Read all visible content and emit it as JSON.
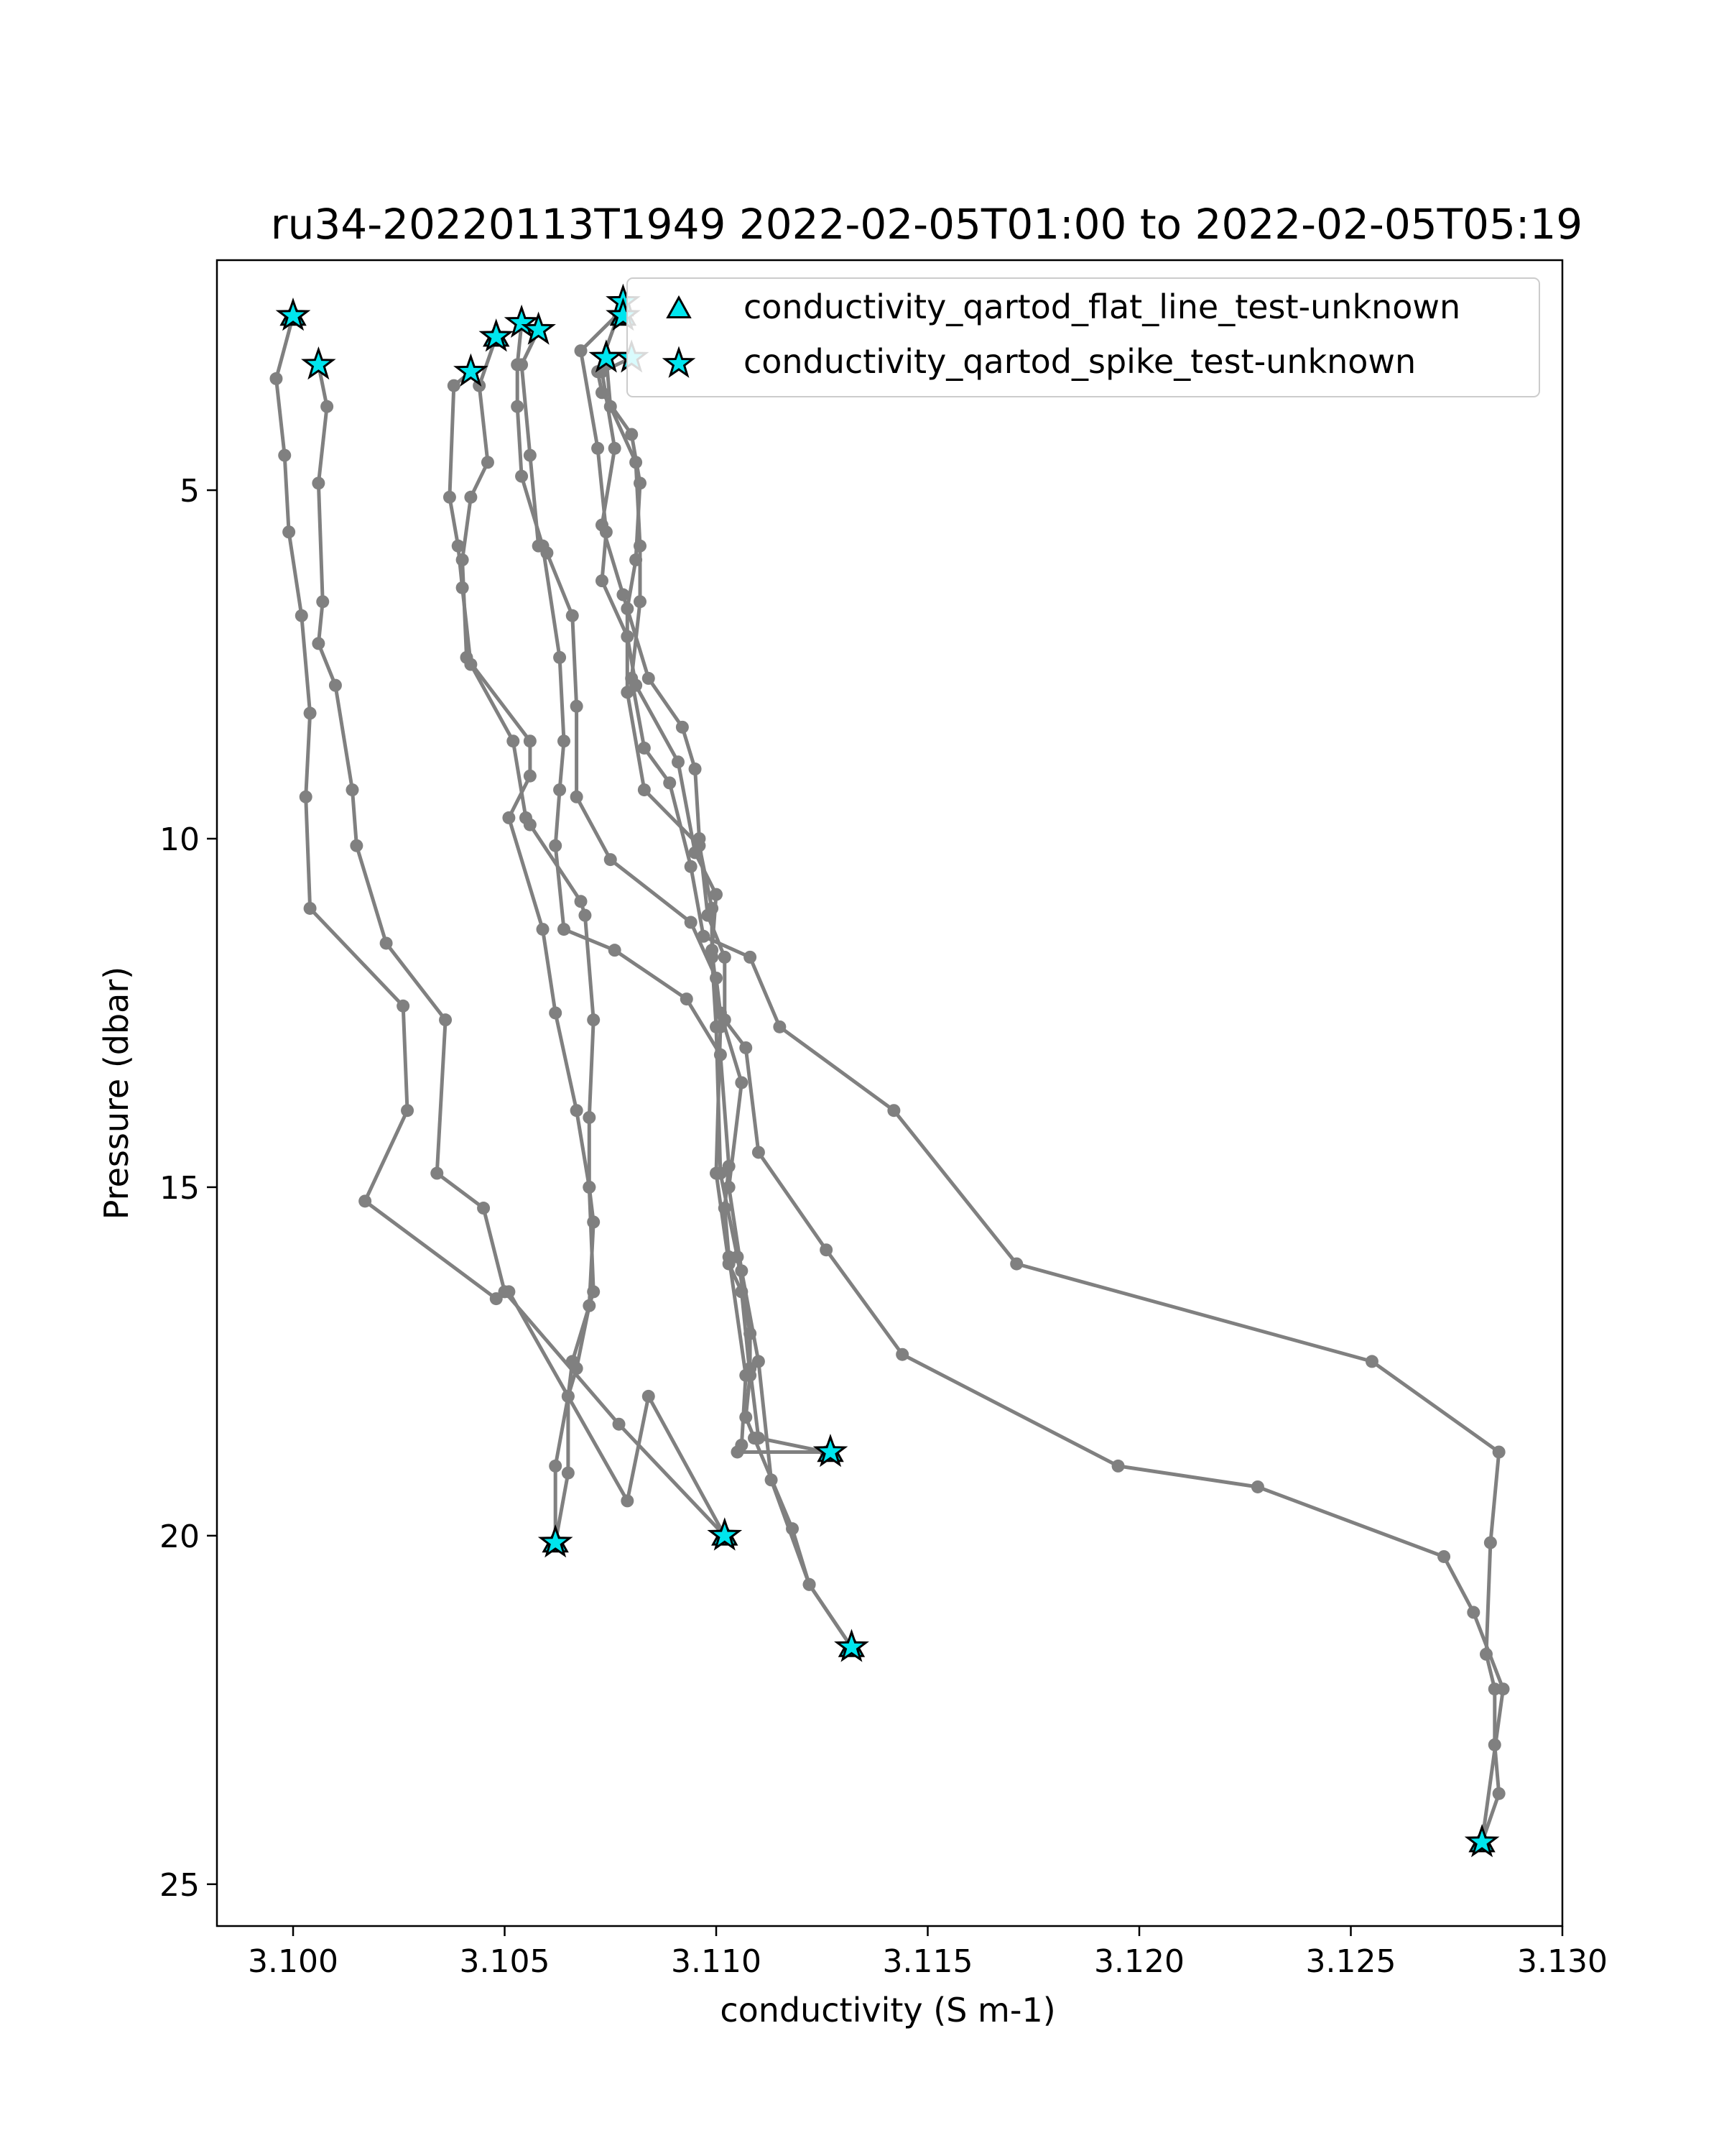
{
  "chart_data": {
    "type": "scatter",
    "title": "ru34-20220113T1949 2022-02-05T01:00 to 2022-02-05T05:19",
    "xlabel": "conductivity (S m-1)",
    "ylabel": "Pressure (dbar)",
    "xlim": [
      3.0982,
      3.13
    ],
    "ylim": [
      25.6,
      1.7
    ],
    "y_inverted": true,
    "x_ticks": [
      3.1,
      3.105,
      3.11,
      3.115,
      3.12,
      3.125,
      3.13
    ],
    "x_tick_labels": [
      "3.100",
      "3.105",
      "3.110",
      "3.115",
      "3.120",
      "3.125",
      "3.130"
    ],
    "y_ticks": [
      5,
      10,
      15,
      20,
      25
    ],
    "y_tick_labels": [
      "5",
      "10",
      "15",
      "20",
      "25"
    ],
    "grid": false,
    "legend_position": "top-right",
    "colors": {
      "profile": "#808080",
      "flag_fill": "#00e5ee",
      "flag_edge": "#000000"
    },
    "legend": [
      {
        "label": "conductivity_qartod_flat_line_test-unknown",
        "marker": "triangle"
      },
      {
        "label": "conductivity_qartod_spike_test-unknown",
        "marker": "star"
      }
    ],
    "profiles": [
      {
        "x": [
          3.1,
          3.0996,
          3.0998,
          3.0999,
          3.1002,
          3.1004,
          3.1003,
          3.1004,
          3.1026,
          3.1027,
          3.1017,
          3.1048,
          3.1051,
          3.1079,
          3.1084,
          3.1102
        ],
        "y": [
          2.5,
          3.4,
          4.5,
          5.6,
          6.8,
          8.2,
          9.4,
          11.0,
          12.4,
          13.9,
          15.2,
          16.6,
          16.5,
          19.5,
          18.0,
          20.0
        ]
      },
      {
        "x": [
          3.1006,
          3.1008,
          3.1006,
          3.1007,
          3.1006,
          3.101,
          3.1014,
          3.1015,
          3.1022,
          3.1036,
          3.1034,
          3.1045,
          3.105,
          3.1077,
          3.1102
        ],
        "y": [
          3.2,
          3.8,
          4.9,
          6.6,
          7.2,
          7.8,
          9.3,
          10.1,
          11.5,
          12.6,
          14.8,
          15.3,
          16.5,
          18.4,
          20.0
        ]
      },
      {
        "x": [
          3.1042,
          3.1038,
          3.1037,
          3.1039,
          3.104,
          3.1042,
          3.1052,
          3.1055,
          3.1056,
          3.1068,
          3.1069,
          3.1071,
          3.107,
          3.107,
          3.1071,
          3.107,
          3.1067,
          3.1065,
          3.1062,
          3.1062
        ],
        "y": [
          3.3,
          3.5,
          5.1,
          5.8,
          6.4,
          7.5,
          8.6,
          9.7,
          9.8,
          10.9,
          11.1,
          12.6,
          14.0,
          15.0,
          15.5,
          16.7,
          17.6,
          18.0,
          19.0,
          20.1
        ]
      },
      {
        "x": [
          3.1048,
          3.1044,
          3.1046,
          3.1042,
          3.104,
          3.1041,
          3.1056,
          3.1056,
          3.1051,
          3.1059,
          3.1062,
          3.1067,
          3.107,
          3.1071,
          3.1066,
          3.1065,
          3.1065,
          3.1062
        ],
        "y": [
          2.8,
          3.5,
          4.6,
          5.1,
          6.0,
          7.4,
          8.6,
          9.1,
          9.7,
          11.3,
          12.5,
          13.9,
          15.0,
          16.5,
          17.5,
          18.0,
          19.1,
          20.1
        ]
      },
      {
        "x": [
          3.1054,
          3.1053,
          3.1053,
          3.1054,
          3.1059,
          3.1063,
          3.1064,
          3.1063,
          3.1062,
          3.1064,
          3.1076,
          3.1093,
          3.1101,
          3.1103,
          3.1102,
          3.1103,
          3.1107,
          3.1106,
          3.1105,
          3.1127
        ],
        "y": [
          2.6,
          3.2,
          3.8,
          4.8,
          5.8,
          7.4,
          8.6,
          9.3,
          10.1,
          11.3,
          11.6,
          12.3,
          13.1,
          14.7,
          15.3,
          16.0,
          17.7,
          18.7,
          18.8,
          18.8
        ]
      },
      {
        "x": [
          3.1058,
          3.1054,
          3.1056,
          3.1058,
          3.106,
          3.1066,
          3.1067,
          3.1067,
          3.1075,
          3.1094,
          3.11,
          3.1101,
          3.1106,
          3.1103,
          3.1106,
          3.111,
          3.1113,
          3.1122,
          3.1132
        ],
        "y": [
          2.7,
          3.2,
          4.5,
          5.8,
          5.9,
          6.8,
          8.1,
          9.4,
          10.3,
          11.2,
          12.0,
          12.5,
          13.5,
          15.0,
          16.2,
          17.5,
          19.2,
          20.7,
          21.6
        ]
      },
      {
        "x": [
          3.1078,
          3.1068,
          3.1072,
          3.1074,
          3.1073,
          3.1079,
          3.1081,
          3.1091,
          3.1095,
          3.11,
          3.1099,
          3.1101,
          3.11,
          3.1103,
          3.1106,
          3.1108,
          3.1107,
          3.1109,
          3.1118,
          3.1122,
          3.1132
        ],
        "y": [
          2.4,
          3.0,
          4.4,
          5.6,
          6.3,
          7.1,
          7.8,
          8.9,
          10.2,
          10.8,
          11.6,
          12.7,
          14.8,
          16.1,
          16.5,
          17.7,
          18.3,
          18.6,
          19.9,
          20.7,
          21.6
        ]
      },
      {
        "x": [
          3.1078,
          3.1072,
          3.1073,
          3.108,
          3.1082,
          3.1081,
          3.1079,
          3.1079,
          3.1083,
          3.1096,
          3.1099,
          3.1099,
          3.11,
          3.1101,
          3.1105,
          3.1108,
          3.1108,
          3.111,
          3.1126
        ],
        "y": [
          2.3,
          3.3,
          3.6,
          4.2,
          4.9,
          6.0,
          6.7,
          7.9,
          9.3,
          10.1,
          11.0,
          11.7,
          12.7,
          14.8,
          16.0,
          17.1,
          17.6,
          18.6,
          18.8
        ]
      },
      {
        "x": [
          3.1074,
          3.1075,
          3.1081,
          3.1082,
          3.1082,
          3.108,
          3.1083,
          3.1089,
          3.1094,
          3.1097,
          3.1108,
          3.1115,
          3.1142,
          3.1171,
          3.1255,
          3.1285,
          3.1283,
          3.1282,
          3.1284,
          3.1284,
          3.1285,
          3.1281
        ],
        "y": [
          3.1,
          3.8,
          4.6,
          5.8,
          6.6,
          7.7,
          8.7,
          9.2,
          10.4,
          11.4,
          11.7,
          12.7,
          13.9,
          16.1,
          17.5,
          18.8,
          20.1,
          21.7,
          22.2,
          23.0,
          23.7,
          24.4
        ]
      },
      {
        "x": [
          3.108,
          3.1073,
          3.1076,
          3.1073,
          3.1078,
          3.1084,
          3.1092,
          3.1095,
          3.1096,
          3.1098,
          3.1102,
          3.1102,
          3.1107,
          3.111,
          3.1126,
          3.1144,
          3.1195,
          3.1228,
          3.1272,
          3.1279,
          3.1286,
          3.1281
        ],
        "y": [
          3.1,
          3.3,
          4.4,
          5.5,
          6.5,
          7.7,
          8.4,
          9.0,
          10.0,
          11.1,
          11.7,
          12.6,
          13.0,
          14.5,
          15.9,
          17.4,
          19.0,
          19.3,
          20.3,
          21.1,
          22.2,
          24.4
        ]
      }
    ],
    "spike_flags": {
      "x": [
        3.1,
        3.1006,
        3.1042,
        3.1048,
        3.1054,
        3.1058,
        3.1074,
        3.108,
        3.1078,
        3.1078,
        3.1062,
        3.1102,
        3.1127,
        3.1132,
        3.1281
      ],
      "y": [
        2.5,
        3.2,
        3.3,
        2.8,
        2.6,
        2.7,
        3.1,
        3.1,
        2.3,
        2.5,
        20.1,
        20.0,
        18.8,
        21.6,
        24.4
      ]
    },
    "flat_line_flags": {
      "x": [
        3.1,
        3.1048,
        3.1078,
        3.1062,
        3.1102,
        3.1127,
        3.1132,
        3.1281
      ],
      "y": [
        2.5,
        2.8,
        2.5,
        20.1,
        20.0,
        18.8,
        21.6,
        24.4
      ]
    }
  }
}
